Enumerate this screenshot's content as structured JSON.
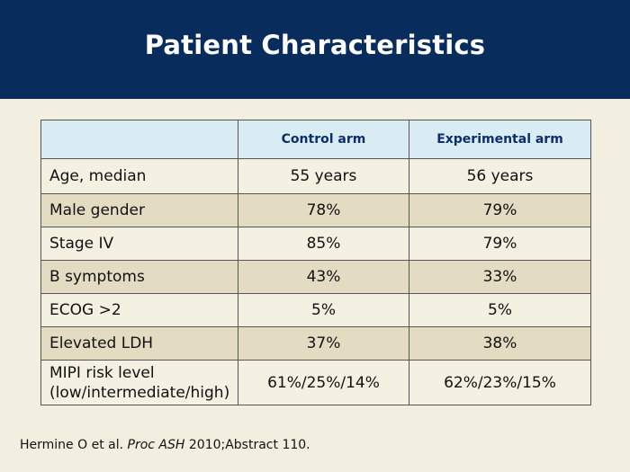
{
  "slide": {
    "title": "Patient Characteristics"
  },
  "table": {
    "headers": [
      "",
      "Control arm",
      "Experimental arm"
    ],
    "rows": [
      {
        "label": "Age, median",
        "control": "55 years",
        "experimental": "56 years"
      },
      {
        "label": "Male gender",
        "control": "78%",
        "experimental": "79%"
      },
      {
        "label": "Stage IV",
        "control": "85%",
        "experimental": "79%"
      },
      {
        "label": "B symptoms",
        "control": "43%",
        "experimental": "33%"
      },
      {
        "label": "ECOG >2",
        "control": "5%",
        "experimental": "5%"
      },
      {
        "label": "Elevated LDH",
        "control": "37%",
        "experimental": "38%"
      },
      {
        "label_line1": "MIPI risk level",
        "label_line2": "(low/intermediate/high)",
        "control": "61%/25%/14%",
        "experimental": "62%/23%/15%"
      }
    ]
  },
  "citation": {
    "authors": "Hermine O et al.",
    "journal": "Proc ASH",
    "rest": "2010;Abstract 110."
  },
  "colors": {
    "title_bar": "#082c5c",
    "background": "#f3efe0",
    "header_row": "#d9ecf3",
    "row_light": "#f4f0e2",
    "row_dark": "#e3dcc2",
    "header_text": "#0d2d6b"
  }
}
